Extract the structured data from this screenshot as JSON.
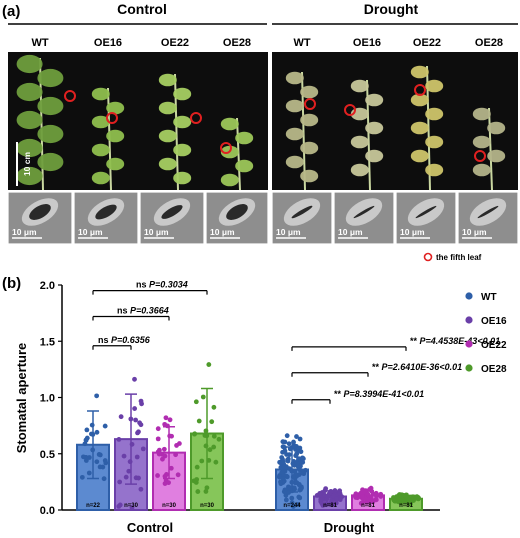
{
  "panel_a": {
    "label": "(a)",
    "group_control": "Control",
    "group_drought": "Drought",
    "genotypes": [
      "WT",
      "OE16",
      "OE22",
      "OE28"
    ],
    "scale_plant": "10 cm",
    "scale_micro": "10 μm",
    "legend_fifth_leaf": "the fifth leaf"
  },
  "panel_b": {
    "label": "(b)"
  },
  "chart_data": {
    "type": "bar",
    "ylabel": "Stomatal aperture",
    "ylim": [
      0,
      2.0
    ],
    "yticks": [
      "0.0",
      "0.5",
      "1.0",
      "1.5",
      "2.0"
    ],
    "groups": [
      "Control",
      "Drought"
    ],
    "series": [
      {
        "name": "WT",
        "color": "#2E5FA8",
        "light": "#5C8AD0",
        "means": [
          0.58,
          0.36
        ],
        "sd": [
          0.3,
          0.2
        ],
        "n": [
          "n=22",
          "n=244"
        ]
      },
      {
        "name": "OE16",
        "color": "#6A3FA8",
        "light": "#9573CC",
        "means": [
          0.63,
          0.12
        ],
        "sd": [
          0.4,
          0.05
        ],
        "n": [
          "n=30",
          "n=81"
        ]
      },
      {
        "name": "OE22",
        "color": "#B12DB1",
        "light": "#E07FE0",
        "means": [
          0.51,
          0.13
        ],
        "sd": [
          0.23,
          0.04
        ],
        "n": [
          "n=30",
          "n=81"
        ]
      },
      {
        "name": "OE28",
        "color": "#4E9A2A",
        "light": "#86C65A",
        "means": [
          0.68,
          0.1
        ],
        "sd": [
          0.4,
          0.03
        ],
        "n": [
          "n=30",
          "n=81"
        ]
      }
    ],
    "comparisons": [
      {
        "group": "Control",
        "ns": "ns",
        "p": "P=0.6356",
        "vs": "OE16"
      },
      {
        "group": "Control",
        "ns": "ns",
        "p": "P=0.3664",
        "vs": "OE22"
      },
      {
        "group": "Control",
        "ns": "ns",
        "p": "P=0.3034",
        "vs": "OE28"
      },
      {
        "group": "Drought",
        "ns": "**",
        "p": "P=8.3994E-41<0.01",
        "vs": "OE16"
      },
      {
        "group": "Drought",
        "ns": "**",
        "p": "P=2.6410E-36<0.01",
        "vs": "OE22"
      },
      {
        "group": "Drought",
        "ns": "**",
        "p": "P=4.4538E-43<0.01",
        "vs": "OE28"
      }
    ]
  }
}
